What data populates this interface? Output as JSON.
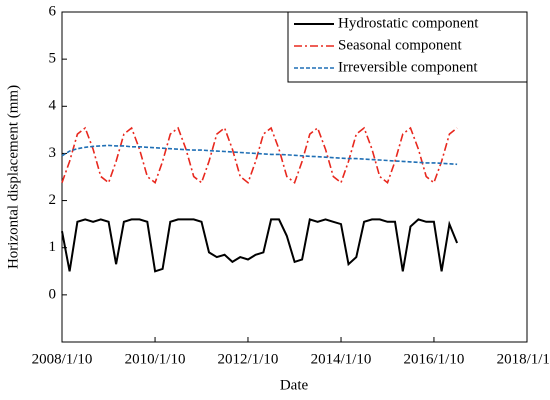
{
  "chart_data": {
    "type": "line",
    "x_label": "Date",
    "y_label": "Horizontal displacement (mm)",
    "x": [
      "2008/1/10",
      "2008/3/10",
      "2008/5/10",
      "2008/7/10",
      "2008/9/10",
      "2008/11/10",
      "2009/1/10",
      "2009/3/10",
      "2009/5/10",
      "2009/7/10",
      "2009/9/10",
      "2009/11/10",
      "2010/1/10",
      "2010/3/10",
      "2010/5/10",
      "2010/7/10",
      "2010/9/10",
      "2010/11/10",
      "2011/1/10",
      "2011/3/10",
      "2011/5/10",
      "2011/7/10",
      "2011/9/10",
      "2011/11/10",
      "2012/1/10",
      "2012/3/10",
      "2012/5/10",
      "2012/7/10",
      "2012/9/10",
      "2012/11/10",
      "2013/1/10",
      "2013/3/10",
      "2013/5/10",
      "2013/7/10",
      "2013/9/10",
      "2013/11/10",
      "2014/1/10",
      "2014/3/10",
      "2014/5/10",
      "2014/7/10",
      "2014/9/10",
      "2014/11/10",
      "2015/1/10",
      "2015/3/10",
      "2015/5/10",
      "2015/7/10",
      "2015/9/10",
      "2015/11/10",
      "2016/1/10",
      "2016/3/10",
      "2016/5/10",
      "2016/7/10"
    ],
    "series": [
      {
        "name": "Hydrostatic component",
        "color": "#000000",
        "dash": "none",
        "values": [
          1.35,
          0.5,
          1.55,
          1.6,
          1.55,
          1.6,
          1.55,
          0.65,
          1.55,
          1.6,
          1.6,
          1.55,
          0.5,
          0.55,
          1.55,
          1.6,
          1.6,
          1.6,
          1.55,
          0.9,
          0.8,
          0.85,
          0.7,
          0.8,
          0.75,
          0.85,
          0.9,
          1.6,
          1.6,
          1.25,
          0.7,
          0.75,
          1.6,
          1.55,
          1.6,
          1.55,
          1.5,
          0.65,
          0.8,
          1.55,
          1.6,
          1.6,
          1.55,
          1.55,
          0.5,
          1.45,
          1.6,
          1.55,
          1.55,
          0.5,
          1.5,
          1.1
        ]
      },
      {
        "name": "Seasonal component",
        "color": "#e8281e",
        "dash": "8,3,2,3",
        "values": [
          2.38,
          2.83,
          3.41,
          3.54,
          3.09,
          2.51,
          2.38,
          2.83,
          3.41,
          3.54,
          3.09,
          2.51,
          2.38,
          2.83,
          3.41,
          3.54,
          3.09,
          2.51,
          2.38,
          2.83,
          3.41,
          3.54,
          3.09,
          2.51,
          2.38,
          2.83,
          3.41,
          3.54,
          3.09,
          2.51,
          2.38,
          2.83,
          3.41,
          3.54,
          3.09,
          2.51,
          2.38,
          2.83,
          3.41,
          3.54,
          3.09,
          2.51,
          2.38,
          2.83,
          3.41,
          3.54,
          3.09,
          2.51,
          2.38,
          2.83,
          3.41,
          3.54
        ]
      },
      {
        "name": "Irreversible component",
        "color": "#1f6fb5",
        "dash": "4,2",
        "values": [
          2.95,
          3.05,
          3.1,
          3.13,
          3.15,
          3.16,
          3.17,
          3.16,
          3.16,
          3.14,
          3.14,
          3.13,
          3.12,
          3.11,
          3.1,
          3.09,
          3.08,
          3.07,
          3.07,
          3.06,
          3.05,
          3.04,
          3.03,
          3.02,
          3.01,
          3.0,
          2.99,
          2.98,
          2.98,
          2.97,
          2.96,
          2.95,
          2.94,
          2.93,
          2.92,
          2.91,
          2.9,
          2.89,
          2.89,
          2.88,
          2.87,
          2.86,
          2.85,
          2.84,
          2.83,
          2.82,
          2.81,
          2.8,
          2.8,
          2.79,
          2.78,
          2.77
        ]
      }
    ],
    "xlim": [
      "2008/1/10",
      "2018/1/10"
    ],
    "xticks": [
      "2008/1/10",
      "2010/1/10",
      "2012/1/10",
      "2014/1/10",
      "2016/1/10",
      "2018/1/10"
    ],
    "ylim": [
      -1,
      6
    ],
    "yticks": [
      0,
      1,
      2,
      3,
      4,
      5,
      6
    ],
    "legend": "upper right"
  }
}
